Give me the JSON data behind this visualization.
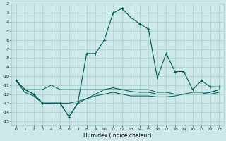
{
  "x": [
    0,
    1,
    2,
    3,
    4,
    5,
    6,
    7,
    8,
    9,
    10,
    11,
    12,
    13,
    14,
    15,
    16,
    17,
    18,
    19,
    20,
    21,
    22,
    23
  ],
  "line_flat1": [
    -10.5,
    -11.5,
    -11.5,
    -11.5,
    -11.0,
    -11.5,
    -11.5,
    -11.5,
    -11.5,
    -11.5,
    -11.5,
    -11.5,
    -11.5,
    -11.5,
    -11.5,
    -11.5,
    -11.8,
    -11.8,
    -12.0,
    -12.0,
    -12.0,
    -12.0,
    -11.8,
    -11.5
  ],
  "line_flat2": [
    -10.5,
    -11.5,
    -12.0,
    -13.0,
    -13.0,
    -13.0,
    -14.5,
    -13.0,
    -12.5,
    -12.0,
    -11.5,
    -11.3,
    -11.5,
    -11.7,
    -11.8,
    -11.8,
    -12.0,
    -12.0,
    -12.0,
    -12.0,
    -11.8,
    -11.8,
    -11.8,
    -11.5
  ],
  "line_flat3": [
    -10.5,
    -11.8,
    -12.2,
    -13.0,
    -13.0,
    -13.0,
    -13.0,
    -12.8,
    -12.5,
    -12.2,
    -12.0,
    -11.8,
    -12.0,
    -12.2,
    -12.2,
    -12.2,
    -12.3,
    -12.3,
    -12.2,
    -12.0,
    -12.0,
    -12.0,
    -12.0,
    -11.8
  ],
  "line_humidex": [
    -10.5,
    -11.5,
    -12.0,
    -13.0,
    -13.0,
    -13.0,
    -14.5,
    -13.0,
    -7.5,
    -7.5,
    -6.0,
    -3.0,
    -2.5,
    -3.5,
    -4.2,
    -4.8,
    -10.2,
    -7.5,
    -9.5,
    -9.5,
    -11.5,
    -10.5,
    -11.2,
    -11.2
  ],
  "bg_color": "#cce8e8",
  "grid_color": "#aacccc",
  "line_color": "#005555",
  "ylim": [
    -15.5,
    -2.0
  ],
  "xlim": [
    -0.5,
    23.5
  ],
  "xlabel": "Humidex (Indice chaleur)",
  "yticks": [
    -2,
    -3,
    -4,
    -5,
    -6,
    -7,
    -8,
    -9,
    -10,
    -11,
    -12,
    -13,
    -14,
    -15
  ],
  "xticks": [
    0,
    1,
    2,
    3,
    4,
    5,
    6,
    7,
    8,
    9,
    10,
    11,
    12,
    13,
    14,
    15,
    16,
    17,
    18,
    19,
    20,
    21,
    22,
    23
  ],
  "xlabel_fontsize": 5.5,
  "tick_fontsize": 4.5
}
